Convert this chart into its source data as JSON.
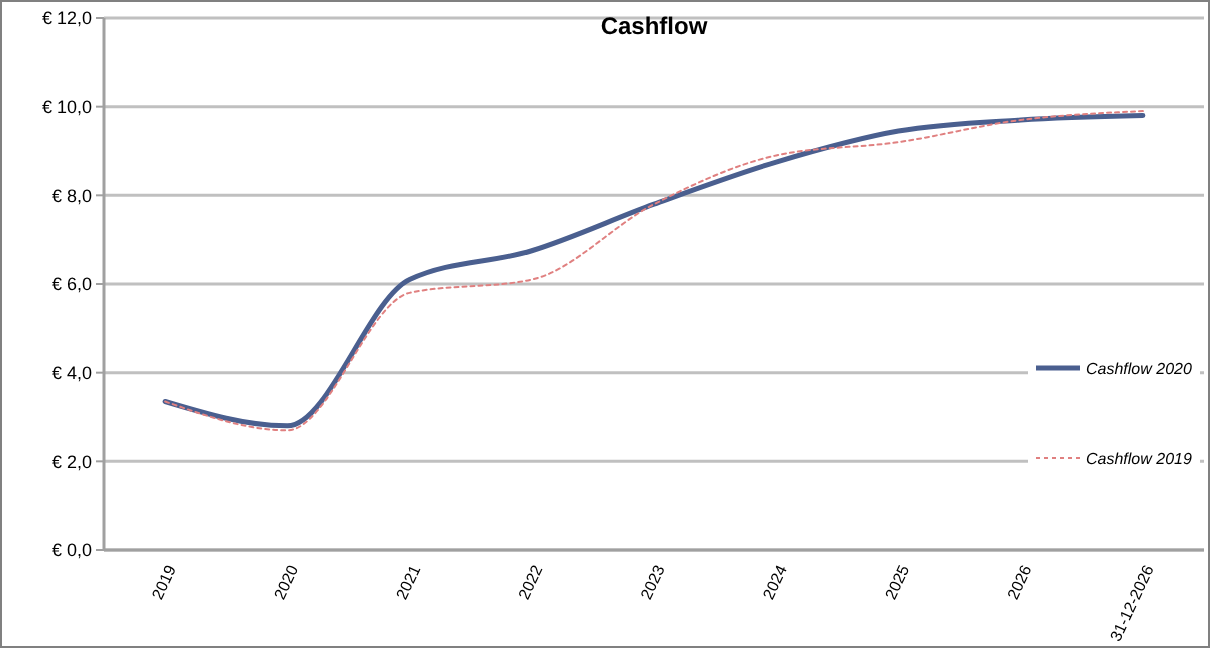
{
  "chart_data": {
    "type": "line",
    "title": "Cashflow",
    "categories": [
      "2019",
      "2020",
      "2021",
      "2022",
      "2023",
      "2024",
      "2025",
      "2026",
      "31-12-2026"
    ],
    "series": [
      {
        "name": "Cashflow 2020",
        "color": "#4a5f8f",
        "line_style": "solid",
        "values": [
          3.35,
          2.8,
          6.1,
          6.75,
          7.8,
          8.75,
          9.45,
          9.7,
          9.8
        ]
      },
      {
        "name": "Cashflow 2019",
        "color": "#e08080",
        "line_style": "dotted",
        "values": [
          3.35,
          2.7,
          5.8,
          6.1,
          7.8,
          8.9,
          9.2,
          9.7,
          9.9
        ]
      }
    ],
    "ylim": [
      0,
      12
    ],
    "yticks": [
      {
        "value": 0,
        "label": "€ 0,0"
      },
      {
        "value": 2,
        "label": "€ 2,0"
      },
      {
        "value": 4,
        "label": "€ 4,0"
      },
      {
        "value": 6,
        "label": "€ 6,0"
      },
      {
        "value": 8,
        "label": "€ 8,0"
      },
      {
        "value": 10,
        "label": "€ 10,0"
      },
      {
        "value": 12,
        "label": "€ 12,0"
      }
    ],
    "grid": "y",
    "legend": "right",
    "marker": "none"
  }
}
